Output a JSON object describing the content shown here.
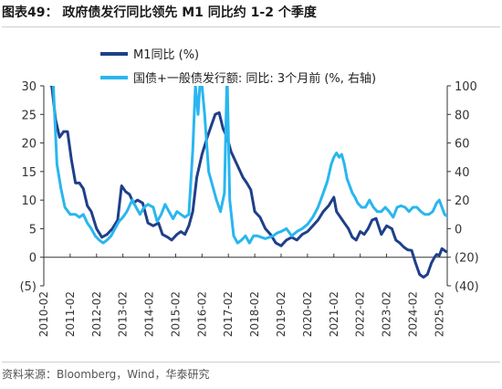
{
  "figure": {
    "title": "图表49： 政府债发行同比领先 M1 同比约 1-2 个季度",
    "source": "资料来源：Bloomberg，Wind，华泰研究"
  },
  "colors": {
    "m1": "#1f3f8a",
    "bond": "#29b6ef",
    "axis": "#333333"
  },
  "chart_data": {
    "type": "line",
    "xlabel": "",
    "ylabel_left": "",
    "ylabel_right": "",
    "x_ticks": [
      "2010-02",
      "2011-02",
      "2012-02",
      "2013-02",
      "2014-02",
      "2015-02",
      "2016-02",
      "2017-02",
      "2018-02",
      "2019-02",
      "2020-02",
      "2021-02",
      "2022-02",
      "2023-02",
      "2024-02",
      "2025-02"
    ],
    "ylim_left": [
      -5,
      30
    ],
    "yticks_left": [
      -5,
      0,
      5,
      10,
      15,
      20,
      25,
      30
    ],
    "yticks_left_labels": [
      "(5)",
      "0",
      "5",
      "10",
      "15",
      "20",
      "25",
      "30"
    ],
    "ylim_right": [
      -40,
      100
    ],
    "yticks_right": [
      -40,
      -20,
      0,
      20,
      40,
      60,
      80,
      100
    ],
    "yticks_right_labels": [
      "(40)",
      "(20)",
      "0",
      "20",
      "40",
      "60",
      "80",
      "100"
    ],
    "legend_position": "top-center",
    "grid": false,
    "series": [
      {
        "name": "M1同比 (%)",
        "axis": "left",
        "color_key": "m1",
        "points": [
          [
            2010.1,
            31
          ],
          [
            2010.4,
            30
          ],
          [
            2010.55,
            24
          ],
          [
            2010.7,
            21
          ],
          [
            2010.85,
            22
          ],
          [
            2011.0,
            22
          ],
          [
            2011.15,
            17
          ],
          [
            2011.3,
            13
          ],
          [
            2011.45,
            13
          ],
          [
            2011.6,
            12
          ],
          [
            2011.75,
            9
          ],
          [
            2011.9,
            8
          ],
          [
            2012.1,
            5
          ],
          [
            2012.3,
            3.5
          ],
          [
            2012.5,
            4
          ],
          [
            2012.7,
            5
          ],
          [
            2012.9,
            6.5
          ],
          [
            2013.05,
            12.5
          ],
          [
            2013.2,
            11.5
          ],
          [
            2013.35,
            11
          ],
          [
            2013.5,
            9.5
          ],
          [
            2013.65,
            10
          ],
          [
            2013.85,
            9.5
          ],
          [
            2014.05,
            6
          ],
          [
            2014.25,
            5.5
          ],
          [
            2014.45,
            6
          ],
          [
            2014.6,
            4
          ],
          [
            2014.8,
            3.5
          ],
          [
            2014.95,
            3
          ],
          [
            2015.15,
            4
          ],
          [
            2015.3,
            4.5
          ],
          [
            2015.45,
            4
          ],
          [
            2015.6,
            5.5
          ],
          [
            2015.75,
            8
          ],
          [
            2015.9,
            14
          ],
          [
            2016.1,
            18
          ],
          [
            2016.3,
            21
          ],
          [
            2016.45,
            23
          ],
          [
            2016.6,
            25
          ],
          [
            2016.75,
            25.3
          ],
          [
            2016.9,
            22.5
          ],
          [
            2017.05,
            21
          ],
          [
            2017.2,
            18.5
          ],
          [
            2017.35,
            17
          ],
          [
            2017.5,
            15.5
          ],
          [
            2017.65,
            14
          ],
          [
            2017.8,
            13
          ],
          [
            2017.95,
            11.8
          ],
          [
            2018.1,
            8
          ],
          [
            2018.3,
            7
          ],
          [
            2018.5,
            5
          ],
          [
            2018.7,
            4
          ],
          [
            2018.9,
            2.5
          ],
          [
            2019.1,
            2
          ],
          [
            2019.3,
            3
          ],
          [
            2019.5,
            3.5
          ],
          [
            2019.7,
            3
          ],
          [
            2019.9,
            4
          ],
          [
            2020.1,
            4.5
          ],
          [
            2020.3,
            5.5
          ],
          [
            2020.5,
            6.5
          ],
          [
            2020.7,
            8
          ],
          [
            2020.9,
            9
          ],
          [
            2021.1,
            10.5
          ],
          [
            2021.2,
            8
          ],
          [
            2021.35,
            7
          ],
          [
            2021.5,
            6
          ],
          [
            2021.65,
            5
          ],
          [
            2021.8,
            3.5
          ],
          [
            2021.95,
            3
          ],
          [
            2022.1,
            4.5
          ],
          [
            2022.25,
            4
          ],
          [
            2022.4,
            5
          ],
          [
            2022.55,
            6.5
          ],
          [
            2022.7,
            6.8
          ],
          [
            2022.9,
            4
          ],
          [
            2023.1,
            5.5
          ],
          [
            2023.3,
            5
          ],
          [
            2023.45,
            3
          ],
          [
            2023.6,
            2.5
          ],
          [
            2023.75,
            1.8
          ],
          [
            2023.9,
            1.3
          ],
          [
            2024.05,
            1.2
          ],
          [
            2024.2,
            -1
          ],
          [
            2024.35,
            -3
          ],
          [
            2024.5,
            -3.5
          ],
          [
            2024.65,
            -3
          ],
          [
            2024.8,
            -1
          ],
          [
            2024.92,
            0
          ],
          [
            2025.0,
            0.5
          ],
          [
            2025.1,
            0.3
          ],
          [
            2025.2,
            1.5
          ],
          [
            2025.35,
            1
          ]
        ]
      },
      {
        "name": "国债+一般债发行额: 同比: 3个月前 (%, 右轴)",
        "axis": "right",
        "color_key": "bond",
        "points": [
          [
            2010.1,
            120
          ],
          [
            2010.45,
            105
          ],
          [
            2010.6,
            45
          ],
          [
            2010.75,
            28
          ],
          [
            2010.9,
            15
          ],
          [
            2011.1,
            10
          ],
          [
            2011.3,
            10
          ],
          [
            2011.45,
            8
          ],
          [
            2011.6,
            10
          ],
          [
            2011.75,
            4
          ],
          [
            2011.9,
            0
          ],
          [
            2012.05,
            -5
          ],
          [
            2012.2,
            -8
          ],
          [
            2012.35,
            -10
          ],
          [
            2012.5,
            -8
          ],
          [
            2012.65,
            -5
          ],
          [
            2012.8,
            0
          ],
          [
            2012.95,
            5
          ],
          [
            2013.1,
            8
          ],
          [
            2013.25,
            12
          ],
          [
            2013.45,
            20
          ],
          [
            2013.6,
            15
          ],
          [
            2013.75,
            10
          ],
          [
            2013.9,
            15
          ],
          [
            2014.05,
            17
          ],
          [
            2014.25,
            15
          ],
          [
            2014.4,
            5
          ],
          [
            2014.55,
            10
          ],
          [
            2014.7,
            17
          ],
          [
            2014.85,
            12
          ],
          [
            2015.0,
            7
          ],
          [
            2015.15,
            12
          ],
          [
            2015.3,
            10
          ],
          [
            2015.45,
            8
          ],
          [
            2015.6,
            10
          ],
          [
            2015.75,
            55
          ],
          [
            2015.85,
            100
          ],
          [
            2015.95,
            80
          ],
          [
            2016.05,
            110
          ],
          [
            2016.2,
            80
          ],
          [
            2016.35,
            40
          ],
          [
            2016.5,
            30
          ],
          [
            2016.65,
            20
          ],
          [
            2016.8,
            12
          ],
          [
            2016.95,
            25
          ],
          [
            2017.05,
            110
          ],
          [
            2017.15,
            20
          ],
          [
            2017.3,
            -5
          ],
          [
            2017.45,
            -10
          ],
          [
            2017.6,
            -8
          ],
          [
            2017.75,
            -5
          ],
          [
            2017.9,
            -10
          ],
          [
            2018.05,
            -5
          ],
          [
            2018.2,
            -5
          ],
          [
            2018.35,
            -6
          ],
          [
            2018.5,
            -7
          ],
          [
            2018.65,
            -6
          ],
          [
            2018.8,
            -5
          ],
          [
            2018.95,
            -3
          ],
          [
            2019.1,
            -2
          ],
          [
            2019.3,
            0
          ],
          [
            2019.5,
            -5
          ],
          [
            2019.7,
            -2
          ],
          [
            2019.9,
            0
          ],
          [
            2020.1,
            3
          ],
          [
            2020.3,
            8
          ],
          [
            2020.5,
            15
          ],
          [
            2020.7,
            25
          ],
          [
            2020.85,
            33
          ],
          [
            2021.0,
            45
          ],
          [
            2021.1,
            50
          ],
          [
            2021.2,
            53
          ],
          [
            2021.3,
            50
          ],
          [
            2021.4,
            52
          ],
          [
            2021.5,
            45
          ],
          [
            2021.6,
            35
          ],
          [
            2021.7,
            30
          ],
          [
            2021.8,
            25
          ],
          [
            2021.9,
            22
          ],
          [
            2022.0,
            18
          ],
          [
            2022.15,
            15
          ],
          [
            2022.3,
            15
          ],
          [
            2022.45,
            20
          ],
          [
            2022.6,
            15
          ],
          [
            2022.75,
            12
          ],
          [
            2022.9,
            12
          ],
          [
            2023.05,
            15
          ],
          [
            2023.2,
            12
          ],
          [
            2023.35,
            8
          ],
          [
            2023.5,
            15
          ],
          [
            2023.65,
            16
          ],
          [
            2023.8,
            15
          ],
          [
            2023.95,
            12
          ],
          [
            2024.1,
            15
          ],
          [
            2024.25,
            15
          ],
          [
            2024.4,
            12
          ],
          [
            2024.55,
            10
          ],
          [
            2024.7,
            10
          ],
          [
            2024.85,
            12
          ],
          [
            2025.0,
            18
          ],
          [
            2025.1,
            20
          ],
          [
            2025.2,
            15
          ],
          [
            2025.3,
            10
          ],
          [
            2025.45,
            8
          ]
        ]
      }
    ]
  }
}
